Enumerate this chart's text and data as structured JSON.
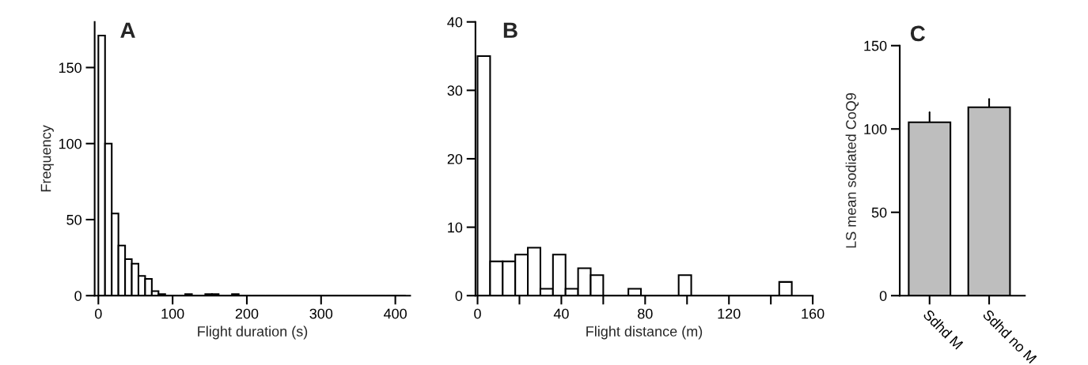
{
  "chart_data": [
    {
      "type": "histogram",
      "title": "A",
      "xlabel": "Flight duration (s)",
      "ylabel": "Frequency",
      "color": "#ffffff",
      "bins": [
        0,
        9,
        18,
        27,
        36,
        45,
        54,
        63,
        72,
        81,
        90,
        99,
        108,
        117,
        126,
        135,
        144,
        153,
        162,
        171,
        180,
        189,
        198,
        207,
        216,
        225,
        234,
        243,
        252,
        261,
        270,
        279,
        288,
        297,
        306,
        315,
        324,
        333,
        342,
        351,
        360,
        369,
        378,
        387,
        396,
        405,
        414
      ],
      "values": [
        171,
        100,
        54,
        33,
        24,
        21,
        13,
        11,
        3,
        1,
        0,
        0,
        0,
        1,
        0,
        0,
        1,
        1,
        0,
        0,
        1,
        0,
        0,
        0,
        0,
        0,
        0,
        0,
        0,
        0,
        0,
        0,
        0,
        0,
        0,
        0,
        0,
        0,
        0,
        0,
        0,
        0,
        0,
        0,
        0,
        0
      ],
      "xlim": [
        -5,
        420
      ],
      "xticks": [
        0,
        100,
        200,
        300,
        400
      ],
      "ylim": [
        0,
        180
      ],
      "yticks": [
        0,
        50,
        100,
        150
      ],
      "grid": false
    },
    {
      "type": "histogram",
      "title": "B",
      "xlabel": "Flight distance (m)",
      "color": "#ffffff",
      "bins": [
        0,
        6,
        12,
        18,
        24,
        30,
        36,
        42,
        48,
        54,
        60,
        66,
        72,
        78,
        84,
        90,
        96,
        102,
        108,
        114,
        120,
        126,
        132,
        138,
        144,
        150
      ],
      "values": [
        35,
        5,
        5,
        6,
        7,
        1,
        6,
        1,
        4,
        3,
        0,
        0,
        1,
        0,
        0,
        0,
        3,
        0,
        0,
        0,
        0,
        0,
        0,
        0,
        2
      ],
      "xlim": [
        -1,
        160
      ],
      "xticks": [
        0,
        {
          "value": 20,
          "label": null
        },
        40,
        {
          "value": 60,
          "label": null
        },
        80,
        {
          "value": 100,
          "label": null
        },
        120,
        {
          "value": 140,
          "label": null
        },
        160
      ],
      "ylim": [
        0,
        40
      ],
      "yticks": [
        0,
        10,
        20,
        30,
        40
      ],
      "grid": false
    },
    {
      "type": "bar",
      "title": "C",
      "ylabel": "LS mean sodiated CoQ9",
      "categories": [
        "Sdhd M",
        "Sdhd no M"
      ],
      "values": [
        104,
        113
      ],
      "errors": [
        [
          104,
          110
        ],
        [
          113,
          118
        ]
      ],
      "color": "#bebebe",
      "ylim": [
        0,
        150
      ],
      "yticks": [
        0,
        50,
        100,
        150
      ],
      "grid": false
    }
  ]
}
